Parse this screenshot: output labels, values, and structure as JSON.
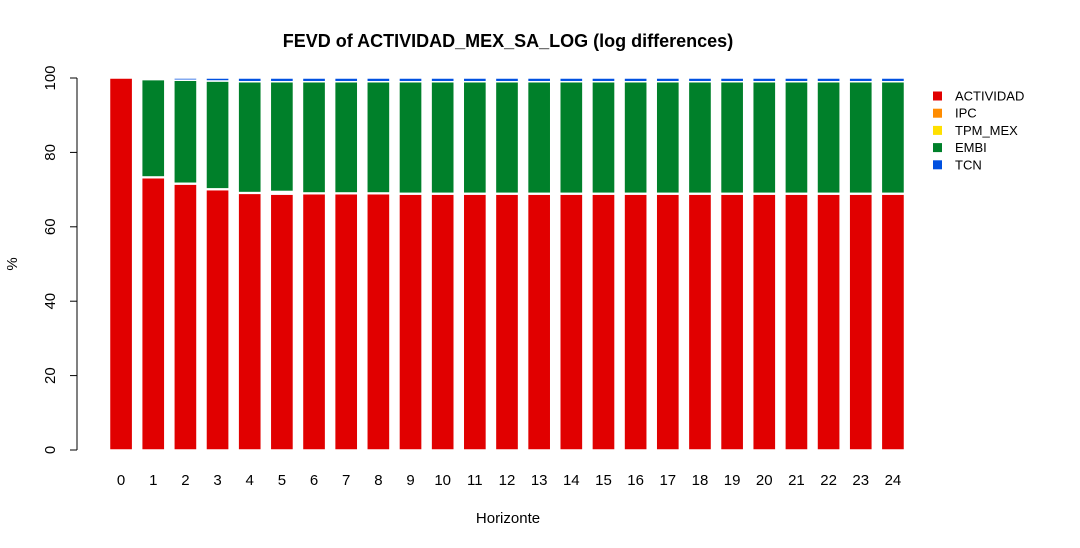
{
  "chart_data": {
    "type": "bar",
    "stacked": true,
    "title": "FEVD of ACTIVIDAD_MEX_SA_LOG (log differences)",
    "xlabel": "Horizonte",
    "ylabel": "%",
    "ylim": [
      0,
      100
    ],
    "yticks": [
      0,
      20,
      40,
      60,
      80,
      100
    ],
    "legend_position": "right",
    "categories": [
      "0",
      "1",
      "2",
      "3",
      "4",
      "5",
      "6",
      "7",
      "8",
      "9",
      "10",
      "11",
      "12",
      "13",
      "14",
      "15",
      "16",
      "17",
      "18",
      "19",
      "20",
      "21",
      "22",
      "23",
      "24"
    ],
    "series": [
      {
        "name": "ACTIVIDAD",
        "color": "#E10000",
        "values": [
          100,
          73.2,
          71.5,
          70.0,
          69.0,
          68.8,
          68.9,
          68.9,
          68.9,
          68.8,
          68.8,
          68.8,
          68.8,
          68.8,
          68.8,
          68.8,
          68.8,
          68.8,
          68.8,
          68.8,
          68.8,
          68.8,
          68.8,
          68.8,
          68.8
        ]
      },
      {
        "name": "IPC",
        "color": "#FF8C00",
        "values": [
          0,
          0.1,
          0.1,
          0.1,
          0.1,
          0.3,
          0.1,
          0.1,
          0.1,
          0.1,
          0.1,
          0.1,
          0.1,
          0.1,
          0.1,
          0.1,
          0.1,
          0.1,
          0.1,
          0.1,
          0.1,
          0.1,
          0.1,
          0.1,
          0.1
        ]
      },
      {
        "name": "TPM_MEX",
        "color": "#FFE000",
        "values": [
          0,
          0.1,
          0.1,
          0.1,
          0.1,
          0.4,
          0.1,
          0.1,
          0.1,
          0.1,
          0.1,
          0.1,
          0.1,
          0.1,
          0.1,
          0.1,
          0.1,
          0.1,
          0.1,
          0.1,
          0.1,
          0.1,
          0.1,
          0.1,
          0.1
        ]
      },
      {
        "name": "EMBI",
        "color": "#00802A",
        "values": [
          0,
          26.2,
          27.7,
          29.0,
          29.8,
          29.5,
          29.9,
          29.9,
          29.9,
          30.0,
          30.0,
          30.0,
          30.0,
          30.0,
          30.0,
          30.0,
          30.0,
          30.0,
          30.0,
          30.0,
          30.0,
          30.0,
          30.0,
          30.0,
          30.0
        ]
      },
      {
        "name": "TCN",
        "color": "#0050E0",
        "values": [
          0,
          0.4,
          0.6,
          0.8,
          1.0,
          1.0,
          1.0,
          1.0,
          1.0,
          1.0,
          1.0,
          1.0,
          1.0,
          1.0,
          1.0,
          1.0,
          1.0,
          1.0,
          1.0,
          1.0,
          1.0,
          1.0,
          1.0,
          1.0,
          1.0
        ]
      }
    ]
  }
}
